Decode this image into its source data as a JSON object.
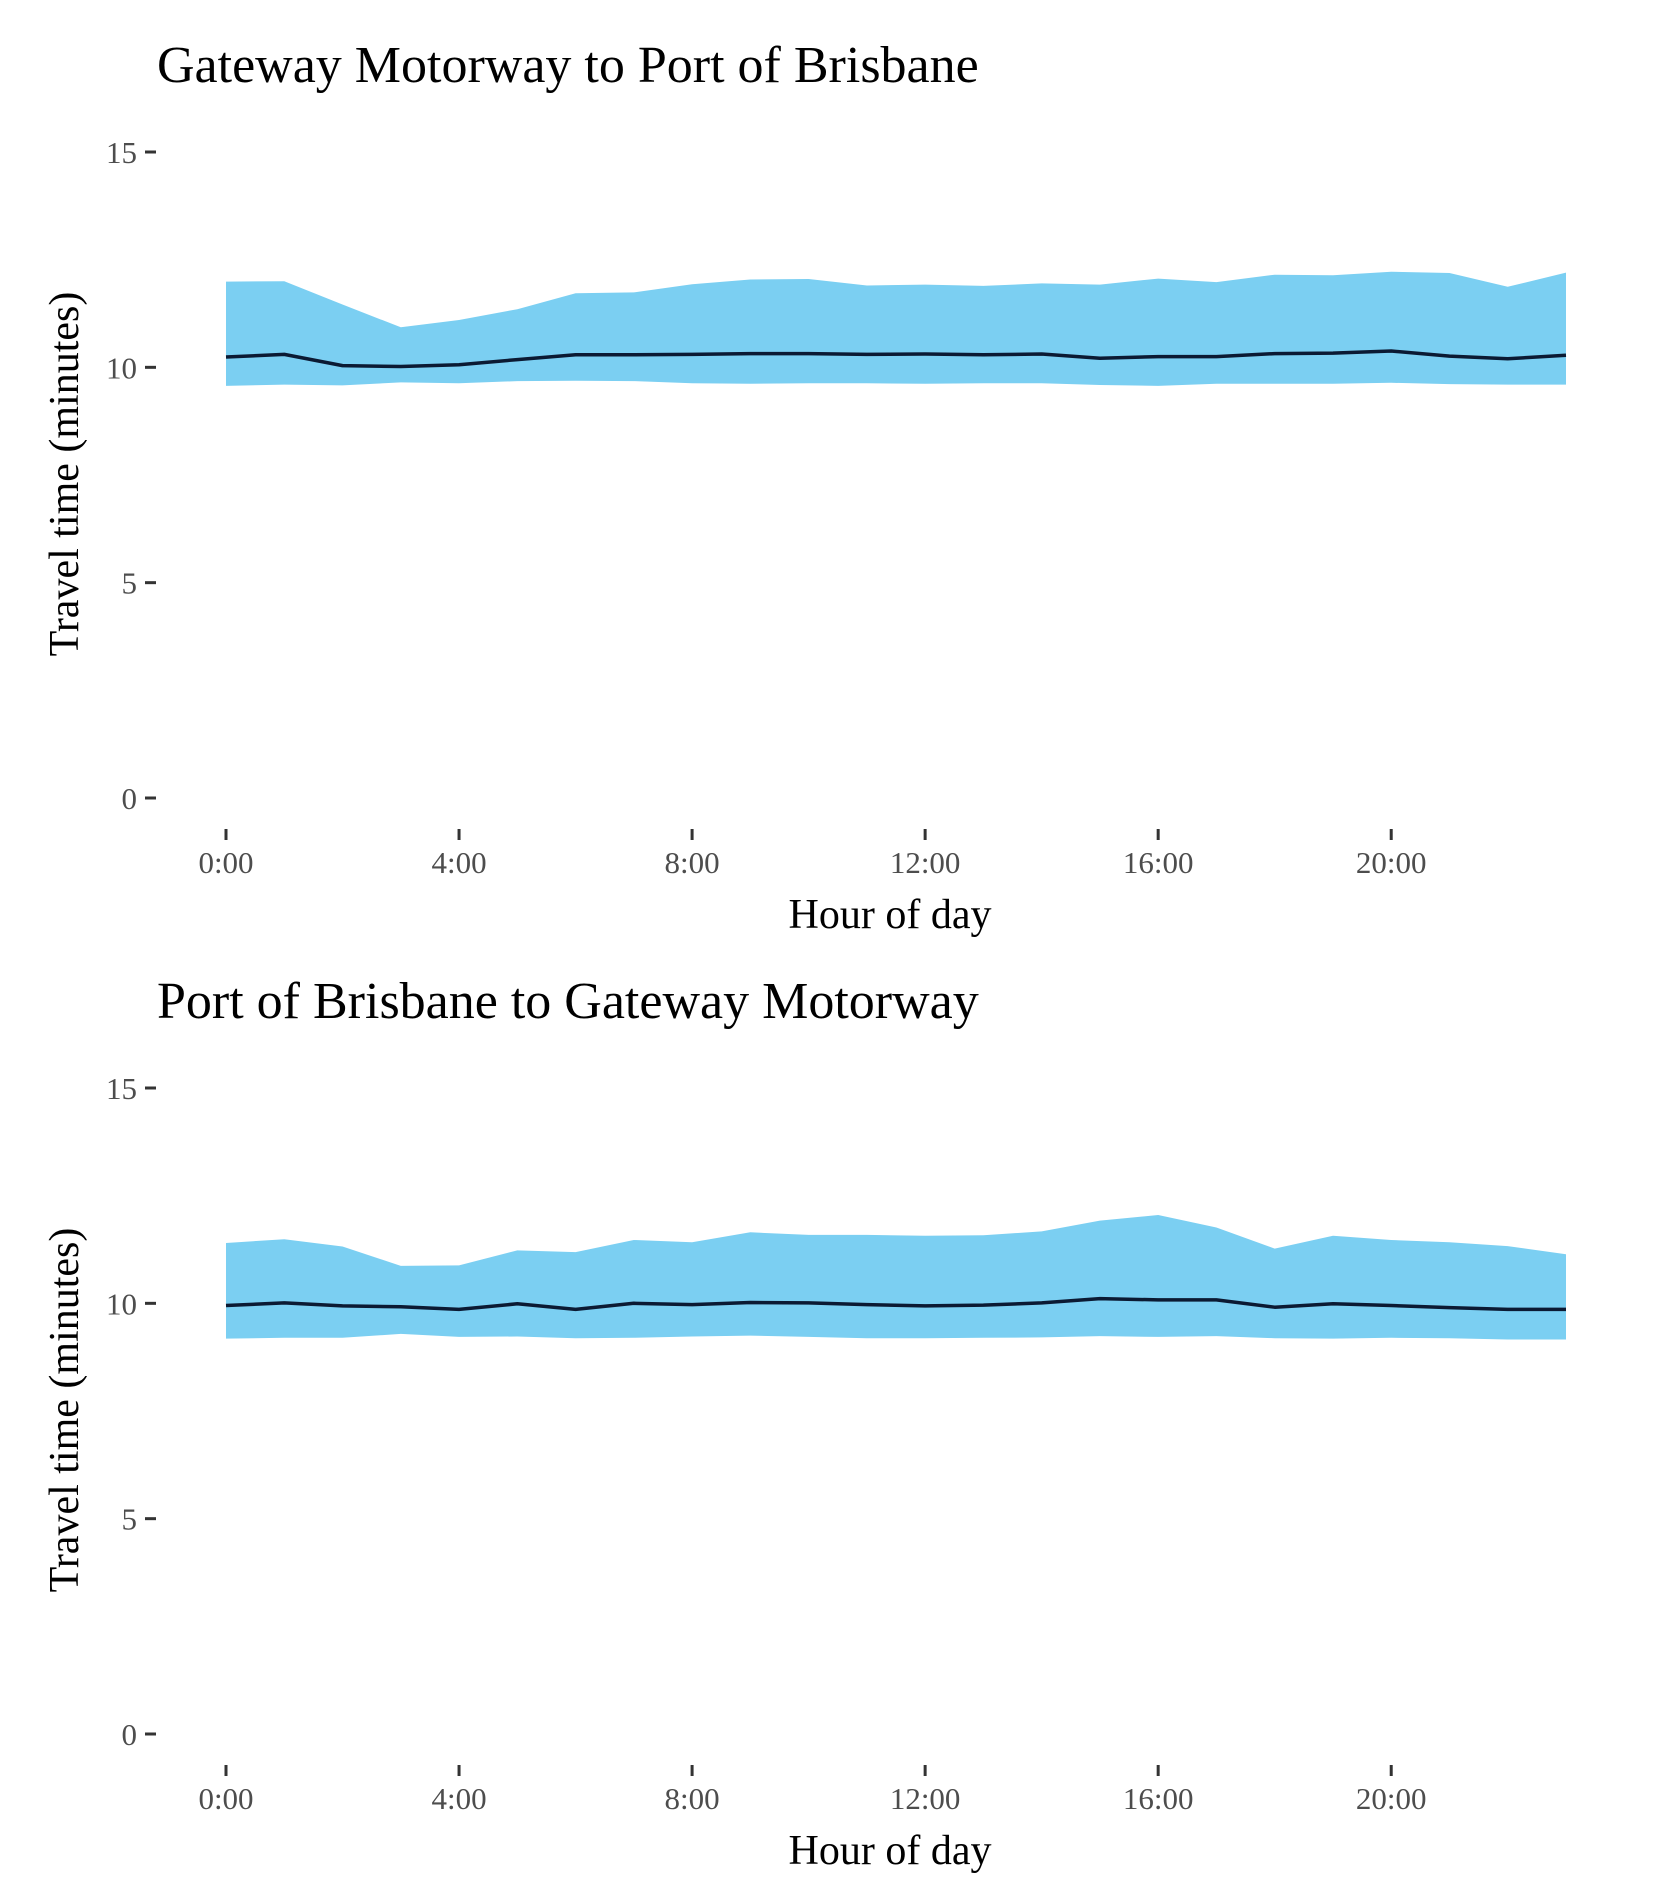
{
  "chart_data": [
    {
      "type": "area",
      "title": "Gateway Motorway to Port of Brisbane",
      "xlabel": "Hour of day",
      "ylabel": "Travel time (minutes)",
      "ylim": [
        0,
        15
      ],
      "xlim": [
        0,
        23
      ],
      "yticks": [
        0,
        5,
        10,
        15
      ],
      "ytick_labels": [
        "0",
        "5",
        "10",
        "15"
      ],
      "xticks": [
        0,
        4,
        8,
        12,
        16,
        20
      ],
      "xtick_labels": [
        "0:00",
        "4:00",
        "8:00",
        "12:00",
        "16:00",
        "20:00"
      ],
      "grid": false,
      "band_color": "#7bcff2",
      "line_color": "#0b1a33",
      "x": [
        0,
        1,
        2,
        3,
        4,
        5,
        6,
        7,
        8,
        9,
        10,
        11,
        12,
        13,
        14,
        15,
        16,
        17,
        18,
        19,
        20,
        21,
        22,
        23
      ],
      "series": [
        {
          "role": "band-upper",
          "values": [
            11.99,
            12.0,
            11.46,
            10.93,
            11.1,
            11.35,
            11.72,
            11.74,
            11.93,
            12.04,
            12.05,
            11.9,
            11.92,
            11.89,
            11.95,
            11.92,
            12.06,
            11.98,
            12.15,
            12.14,
            12.22,
            12.19,
            11.87,
            12.2
          ]
        },
        {
          "role": "band-lower",
          "values": [
            9.57,
            9.6,
            9.58,
            9.65,
            9.63,
            9.68,
            9.69,
            9.68,
            9.63,
            9.62,
            9.63,
            9.63,
            9.62,
            9.63,
            9.63,
            9.59,
            9.57,
            9.62,
            9.62,
            9.62,
            9.64,
            9.61,
            9.6,
            9.6
          ]
        },
        {
          "role": "median",
          "values": [
            10.24,
            10.3,
            10.04,
            10.02,
            10.06,
            10.18,
            10.29,
            10.29,
            10.3,
            10.32,
            10.32,
            10.3,
            10.31,
            10.29,
            10.31,
            10.21,
            10.25,
            10.25,
            10.32,
            10.33,
            10.38,
            10.26,
            10.2,
            10.28
          ]
        }
      ]
    },
    {
      "type": "area",
      "title": "Port of Brisbane to Gateway Motorway",
      "xlabel": "Hour of day",
      "ylabel": "Travel time (minutes)",
      "ylim": [
        0,
        15
      ],
      "xlim": [
        0,
        23
      ],
      "yticks": [
        0,
        5,
        10,
        15
      ],
      "ytick_labels": [
        "0",
        "5",
        "10",
        "15"
      ],
      "xticks": [
        0,
        4,
        8,
        12,
        16,
        20
      ],
      "xtick_labels": [
        "0:00",
        "4:00",
        "8:00",
        "12:00",
        "16:00",
        "20:00"
      ],
      "grid": false,
      "band_color": "#7bcff2",
      "line_color": "#0b1a33",
      "x": [
        0,
        1,
        2,
        3,
        4,
        5,
        6,
        7,
        8,
        9,
        10,
        11,
        12,
        13,
        14,
        15,
        16,
        17,
        18,
        19,
        20,
        21,
        22,
        23
      ],
      "series": [
        {
          "role": "band-upper",
          "values": [
            11.4,
            11.49,
            11.32,
            10.87,
            10.88,
            11.23,
            11.19,
            11.47,
            11.42,
            11.65,
            11.59,
            11.59,
            11.57,
            11.58,
            11.67,
            11.92,
            12.05,
            11.76,
            11.27,
            11.57,
            11.47,
            11.42,
            11.33,
            11.14
          ]
        },
        {
          "role": "band-lower",
          "values": [
            9.18,
            9.2,
            9.2,
            9.29,
            9.22,
            9.23,
            9.19,
            9.2,
            9.23,
            9.25,
            9.22,
            9.19,
            9.19,
            9.2,
            9.21,
            9.24,
            9.22,
            9.24,
            9.19,
            9.18,
            9.2,
            9.19,
            9.16,
            9.16
          ]
        },
        {
          "role": "median",
          "values": [
            9.95,
            10.01,
            9.94,
            9.92,
            9.86,
            9.99,
            9.86,
            10.0,
            9.97,
            10.02,
            10.01,
            9.97,
            9.94,
            9.96,
            10.01,
            10.11,
            10.08,
            10.08,
            9.91,
            9.99,
            9.95,
            9.9,
            9.86,
            9.86
          ]
        }
      ]
    }
  ]
}
